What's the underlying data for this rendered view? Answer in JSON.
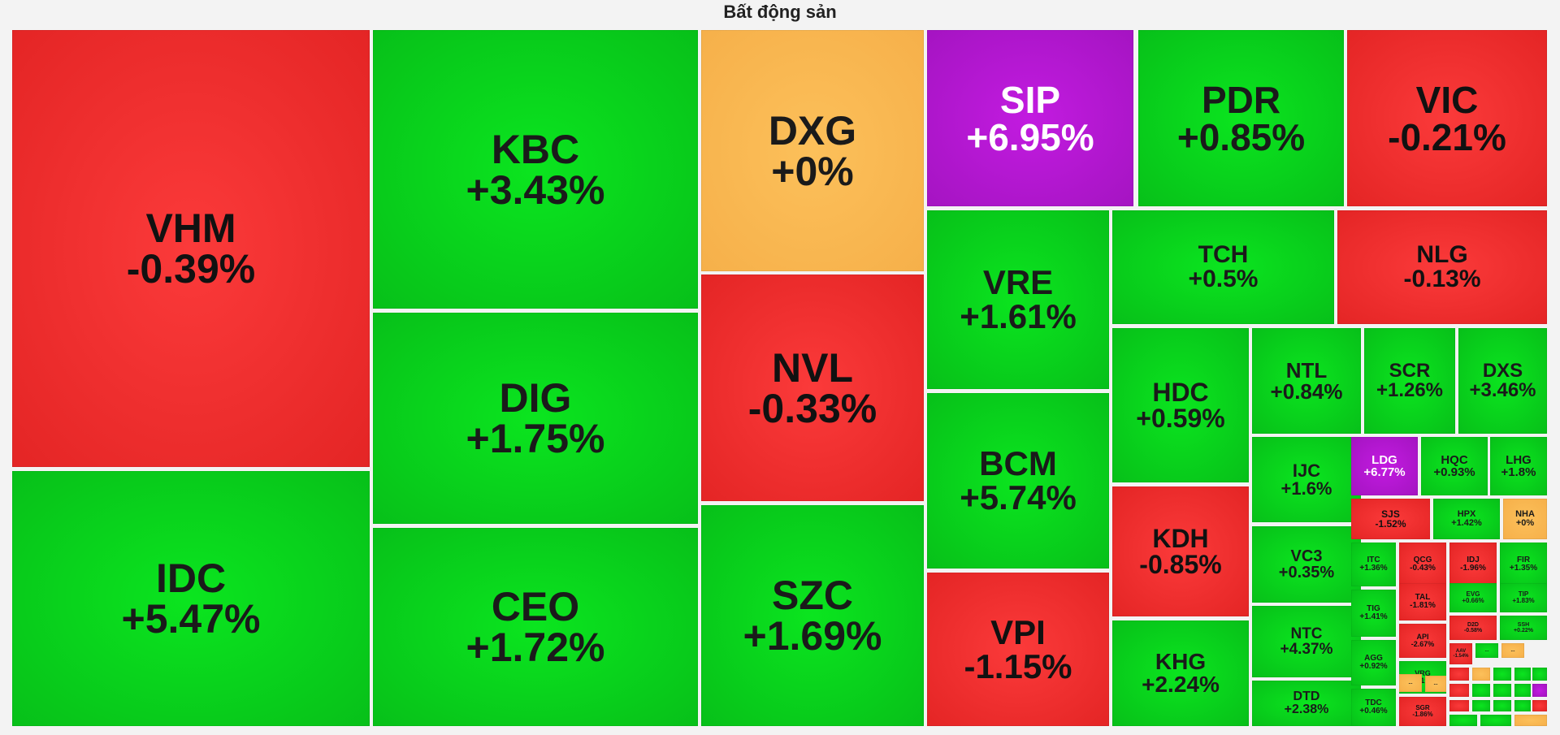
{
  "title": "Bất động sản",
  "colors": {
    "up": "#07c019",
    "down": "#e42525",
    "flat": "#f6b04a",
    "ceiling": "#a514c2"
  },
  "chart_data": {
    "type": "treemap",
    "title": "Bất động sản",
    "series": [
      {
        "symbol": "VHM",
        "change": "-0.39%",
        "status": "down"
      },
      {
        "symbol": "IDC",
        "change": "+5.47%",
        "status": "up"
      },
      {
        "symbol": "KBC",
        "change": "+3.43%",
        "status": "up"
      },
      {
        "symbol": "DIG",
        "change": "+1.75%",
        "status": "up"
      },
      {
        "symbol": "CEO",
        "change": "+1.72%",
        "status": "up"
      },
      {
        "symbol": "DXG",
        "change": "+0%",
        "status": "flat"
      },
      {
        "symbol": "NVL",
        "change": "-0.33%",
        "status": "down"
      },
      {
        "symbol": "SZC",
        "change": "+1.69%",
        "status": "up"
      },
      {
        "symbol": "SIP",
        "change": "+6.95%",
        "status": "ceiling"
      },
      {
        "symbol": "PDR",
        "change": "+0.85%",
        "status": "up"
      },
      {
        "symbol": "VIC",
        "change": "-0.21%",
        "status": "down"
      },
      {
        "symbol": "VRE",
        "change": "+1.61%",
        "status": "up"
      },
      {
        "symbol": "BCM",
        "change": "+5.74%",
        "status": "up"
      },
      {
        "symbol": "VPI",
        "change": "-1.15%",
        "status": "down"
      },
      {
        "symbol": "TCH",
        "change": "+0.5%",
        "status": "up"
      },
      {
        "symbol": "NLG",
        "change": "-0.13%",
        "status": "down"
      },
      {
        "symbol": "HDC",
        "change": "+0.59%",
        "status": "up"
      },
      {
        "symbol": "KDH",
        "change": "-0.85%",
        "status": "down"
      },
      {
        "symbol": "KHG",
        "change": "+2.24%",
        "status": "up"
      },
      {
        "symbol": "NTL",
        "change": "+0.84%",
        "status": "up"
      },
      {
        "symbol": "SCR",
        "change": "+1.26%",
        "status": "up"
      },
      {
        "symbol": "DXS",
        "change": "+3.46%",
        "status": "up"
      },
      {
        "symbol": "IJC",
        "change": "+1.6%",
        "status": "up"
      },
      {
        "symbol": "VC3",
        "change": "+0.35%",
        "status": "up"
      },
      {
        "symbol": "NTC",
        "change": "+4.37%",
        "status": "up"
      },
      {
        "symbol": "DTD",
        "change": "+2.38%",
        "status": "up"
      },
      {
        "symbol": "LDG",
        "change": "+6.77%",
        "status": "ceiling"
      },
      {
        "symbol": "HQC",
        "change": "+0.93%",
        "status": "up"
      },
      {
        "symbol": "LHG",
        "change": "+1.8%",
        "status": "up"
      },
      {
        "symbol": "SJS",
        "change": "-1.52%",
        "status": "down"
      },
      {
        "symbol": "HPX",
        "change": "+1.42%",
        "status": "up"
      },
      {
        "symbol": "NHA",
        "change": "+0%",
        "status": "flat"
      },
      {
        "symbol": "ITC",
        "change": "+1.36%",
        "status": "up"
      },
      {
        "symbol": "QCG",
        "change": "-0.43%",
        "status": "down"
      },
      {
        "symbol": "IDJ",
        "change": "-1.96%",
        "status": "down"
      },
      {
        "symbol": "FIR",
        "change": "+1.35%",
        "status": "up"
      },
      {
        "symbol": "TIG",
        "change": "+1.41%",
        "status": "up"
      },
      {
        "symbol": "TAL",
        "change": "-1.81%",
        "status": "down"
      },
      {
        "symbol": "EVG",
        "change": "+0.66%",
        "status": "up"
      },
      {
        "symbol": "TIP",
        "change": "+1.83%",
        "status": "up"
      },
      {
        "symbol": "D2D",
        "change": "-0.58%",
        "status": "down"
      },
      {
        "symbol": "SSH",
        "change": "+0.22%",
        "status": "up"
      },
      {
        "symbol": "API",
        "change": "-2.67%",
        "status": "down"
      },
      {
        "symbol": "AGG",
        "change": "+0.92%",
        "status": "up"
      },
      {
        "symbol": "AAV",
        "change": "-1.54%",
        "status": "down"
      },
      {
        "symbol": "VRG",
        "change": "+3.19%",
        "status": "up"
      },
      {
        "symbol": "TDC",
        "change": "+0.46%",
        "status": "up"
      },
      {
        "symbol": "SGR",
        "change": "-1.86%",
        "status": "down"
      },
      {
        "symbol": "...",
        "change": "",
        "status": "flat"
      },
      {
        "symbol": "...",
        "change": "",
        "status": "flat"
      },
      {
        "symbol": "...",
        "change": "",
        "status": "up"
      },
      {
        "symbol": "...",
        "change": "",
        "status": "flat"
      },
      {
        "symbol": "",
        "change": "",
        "status": "down"
      },
      {
        "symbol": "",
        "change": "",
        "status": "flat"
      },
      {
        "symbol": "",
        "change": "",
        "status": "up"
      },
      {
        "symbol": "",
        "change": "",
        "status": "up"
      },
      {
        "symbol": "",
        "change": "",
        "status": "up"
      },
      {
        "symbol": "",
        "change": "",
        "status": "down"
      },
      {
        "symbol": "",
        "change": "",
        "status": "up"
      },
      {
        "symbol": "",
        "change": "",
        "status": "up"
      },
      {
        "symbol": "",
        "change": "",
        "status": "up"
      },
      {
        "symbol": "",
        "change": "",
        "status": "ceiling"
      },
      {
        "symbol": "",
        "change": "",
        "status": "down"
      },
      {
        "symbol": "",
        "change": "",
        "status": "up"
      },
      {
        "symbol": "",
        "change": "",
        "status": "up"
      },
      {
        "symbol": "",
        "change": "",
        "status": "up"
      },
      {
        "symbol": "",
        "change": "",
        "status": "down"
      },
      {
        "symbol": "",
        "change": "",
        "status": "up"
      },
      {
        "symbol": "",
        "change": "",
        "status": "up"
      },
      {
        "symbol": "",
        "change": "",
        "status": "flat"
      }
    ]
  }
}
